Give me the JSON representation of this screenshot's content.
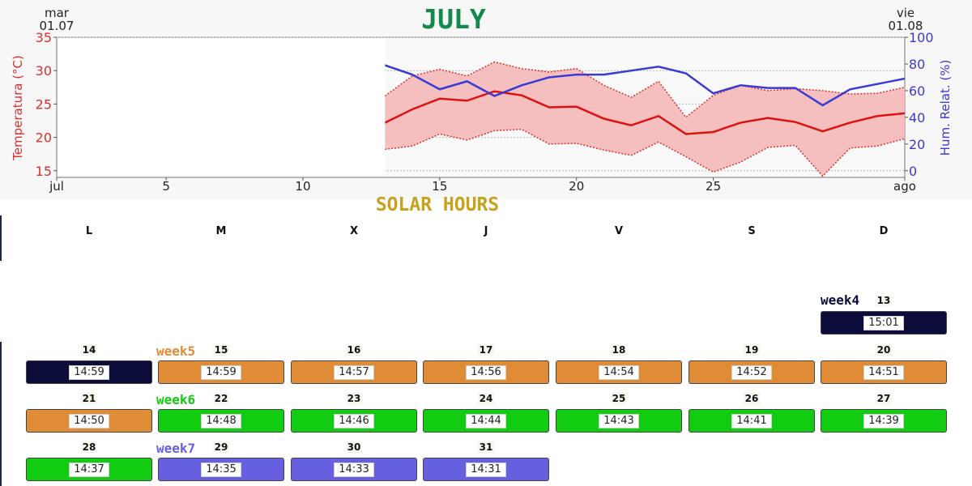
{
  "header": {
    "left_date_day": "mar",
    "left_date": "01.07",
    "right_date_day": "vie",
    "right_date": "01.08",
    "month_title": "JULY"
  },
  "chart_data": {
    "type": "line",
    "x_tick_labels": [
      "jul",
      "5",
      "10",
      "15",
      "20",
      "25",
      "ago"
    ],
    "x_tick_days": [
      1,
      5,
      10,
      15,
      20,
      25,
      32
    ],
    "xlim": [
      1,
      32
    ],
    "ylabel_left": "Temperatura (°C)",
    "ylabel_right": "Hum. Relat. (%)",
    "ylim_left": [
      14,
      35
    ],
    "yticks_left": [
      15,
      20,
      25,
      30,
      35
    ],
    "ylim_right": [
      -5,
      100
    ],
    "yticks_right": [
      0,
      20,
      40,
      60,
      80,
      100
    ],
    "grid": true,
    "x": [
      13,
      14,
      15,
      16,
      17,
      18,
      19,
      20,
      21,
      22,
      23,
      24,
      25,
      26,
      27,
      28,
      29,
      30,
      31,
      32
    ],
    "series": [
      {
        "axis": "left",
        "role": "max",
        "color": "#d93030",
        "values": [
          26.2,
          29.2,
          30.2,
          29.2,
          31.3,
          30.3,
          29.8,
          30.3,
          27.8,
          26.0,
          28.4,
          23.0,
          26.3,
          27.8,
          27.0,
          27.3,
          27.0,
          26.5,
          26.6,
          27.5
        ]
      },
      {
        "axis": "left",
        "role": "mean",
        "color": "#dd1111",
        "values": [
          22.2,
          24.2,
          25.8,
          25.5,
          26.9,
          26.3,
          24.5,
          24.6,
          22.8,
          21.8,
          23.2,
          20.5,
          20.8,
          22.2,
          22.9,
          22.3,
          20.9,
          22.2,
          23.2,
          23.6
        ]
      },
      {
        "axis": "left",
        "role": "min",
        "color": "#d93030",
        "values": [
          18.2,
          18.7,
          20.5,
          19.6,
          21.0,
          21.2,
          19.0,
          19.1,
          18.1,
          17.3,
          19.3,
          17.1,
          14.8,
          16.3,
          18.5,
          18.8,
          14.2,
          18.4,
          18.7,
          19.8
        ]
      },
      {
        "axis": "right",
        "role": "humidity",
        "color": "#3a3ad4",
        "values": [
          79,
          72,
          61,
          67,
          56,
          64,
          70,
          72,
          72,
          75,
          78,
          73,
          58,
          64,
          62,
          62,
          49,
          61,
          65,
          69
        ]
      }
    ]
  },
  "solar": {
    "title": "SOLAR HOURS",
    "day_names": [
      "L",
      "M",
      "X",
      "J",
      "V",
      "S",
      "D"
    ],
    "weeks": [
      {
        "label": "week4",
        "color": "#0c0c3a",
        "label_color": "#0c0c3a"
      },
      {
        "label": "week5",
        "color": "#e08b35",
        "label_color": "#e08b35"
      },
      {
        "label": "week6",
        "color": "#11cc11",
        "label_color": "#11cc11"
      },
      {
        "label": "week7",
        "color": "#6660e0",
        "label_color": "#6660e0"
      }
    ],
    "rows": [
      [
        null,
        null,
        null,
        null,
        null,
        null,
        {
          "day": "13",
          "hours": "15:01",
          "week": 0
        }
      ],
      [
        {
          "day": "14",
          "hours": "14:59",
          "week": 0
        },
        {
          "day": "15",
          "hours": "14:59",
          "week": 1
        },
        {
          "day": "16",
          "hours": "14:57",
          "week": 1
        },
        {
          "day": "17",
          "hours": "14:56",
          "week": 1
        },
        {
          "day": "18",
          "hours": "14:54",
          "week": 1
        },
        {
          "day": "19",
          "hours": "14:52",
          "week": 1
        },
        {
          "day": "20",
          "hours": "14:51",
          "week": 1
        }
      ],
      [
        {
          "day": "21",
          "hours": "14:50",
          "week": 1
        },
        {
          "day": "22",
          "hours": "14:48",
          "week": 2
        },
        {
          "day": "23",
          "hours": "14:46",
          "week": 2
        },
        {
          "day": "24",
          "hours": "14:44",
          "week": 2
        },
        {
          "day": "25",
          "hours": "14:43",
          "week": 2
        },
        {
          "day": "26",
          "hours": "14:41",
          "week": 2
        },
        {
          "day": "27",
          "hours": "14:39",
          "week": 2
        }
      ],
      [
        {
          "day": "28",
          "hours": "14:37",
          "week": 2
        },
        {
          "day": "29",
          "hours": "14:35",
          "week": 3
        },
        {
          "day": "30",
          "hours": "14:33",
          "week": 3
        },
        {
          "day": "31",
          "hours": "14:31",
          "week": 3
        },
        null,
        null,
        null
      ]
    ]
  }
}
